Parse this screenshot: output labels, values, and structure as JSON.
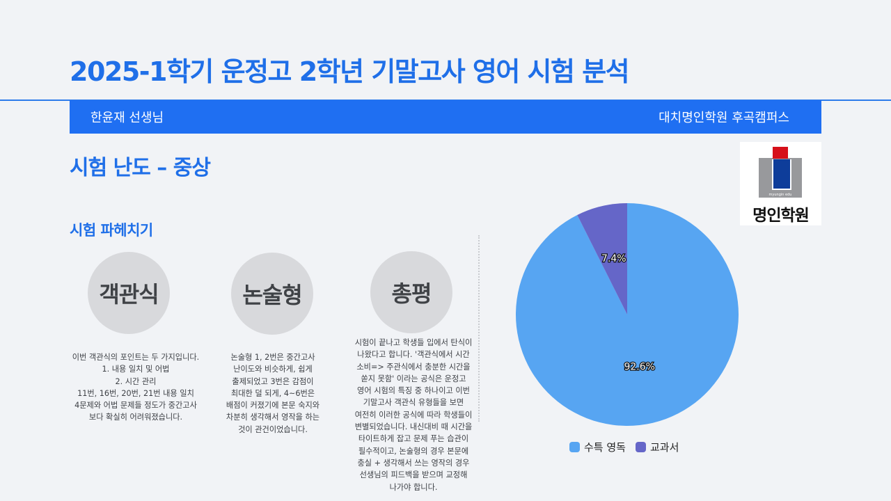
{
  "header": {
    "title": "2025-1학기 운정고 2학년 기말고사 영어 시험 분석",
    "teacher": "한윤재 선생님",
    "campus": "대치명인학원 후곡캠퍼스"
  },
  "logo": {
    "subtext": "myungin edu",
    "name": "명인학원"
  },
  "difficulty": "시험 난도 – 중상",
  "section_title": "시험 파헤치기",
  "columns": [
    {
      "label": "객관식",
      "text": "이번 객관식의 포인트는 두 가지입니다.\n1. 내용 일치 및 어법\n2. 시간 관리\n11번, 16번, 20번, 21번 내용 일치\n4문제와 어법 문제들 정도가 중간고사\n보다 확실히 어려워졌습니다."
    },
    {
      "label": "논술형",
      "text": "논술형 1, 2번은 중간고사\n난이도와 비슷하게, 쉽게\n출제되었고 3번은 감점이\n최대한 덜 되게, 4~6번은\n배점이 커졌기에 본문 숙지와\n차분히 생각해서 영작을 하는\n것이 관건이었습니다."
    },
    {
      "label": "총평",
      "text": "시험이 끝나고 학생들 입에서 탄식이\n나왔다고 합니다. '객관식에서 시간\n소비=> 주관식에서 충분한 시간을\n쏟지 못함' 이라는 공식은 운정고\n영어 시험의 특징 중 하나이고 이번\n기말고사 객관식 유형들을 보면\n여전히 이러한 공식에 따라 학생들이\n변별되었습니다. 내신대비 때 시간을\n타이트하게 잡고 문제 푸는 습관이\n필수적이고, 논술형의 경우 본문에\n충실 + 생각해서 쓰는 영작의 경우\n선생님의 피드백을 받으며 교정해\n나가야 합니다."
    }
  ],
  "colors": {
    "accent": "#1f6fe8",
    "bar": "#1f6ff2",
    "slice_main": "#57a5f2",
    "slice_minor": "#6566c8"
  },
  "chart_data": {
    "type": "pie",
    "title": "",
    "categories": [
      "수특 영독",
      "교과서"
    ],
    "values": [
      92.6,
      7.4
    ],
    "labels": [
      "92.6%",
      "7.4%"
    ],
    "colors": [
      "#57a5f2",
      "#6566c8"
    ],
    "start_angle": "12 o'clock",
    "direction": "clockwise",
    "legend_position": "bottom"
  }
}
